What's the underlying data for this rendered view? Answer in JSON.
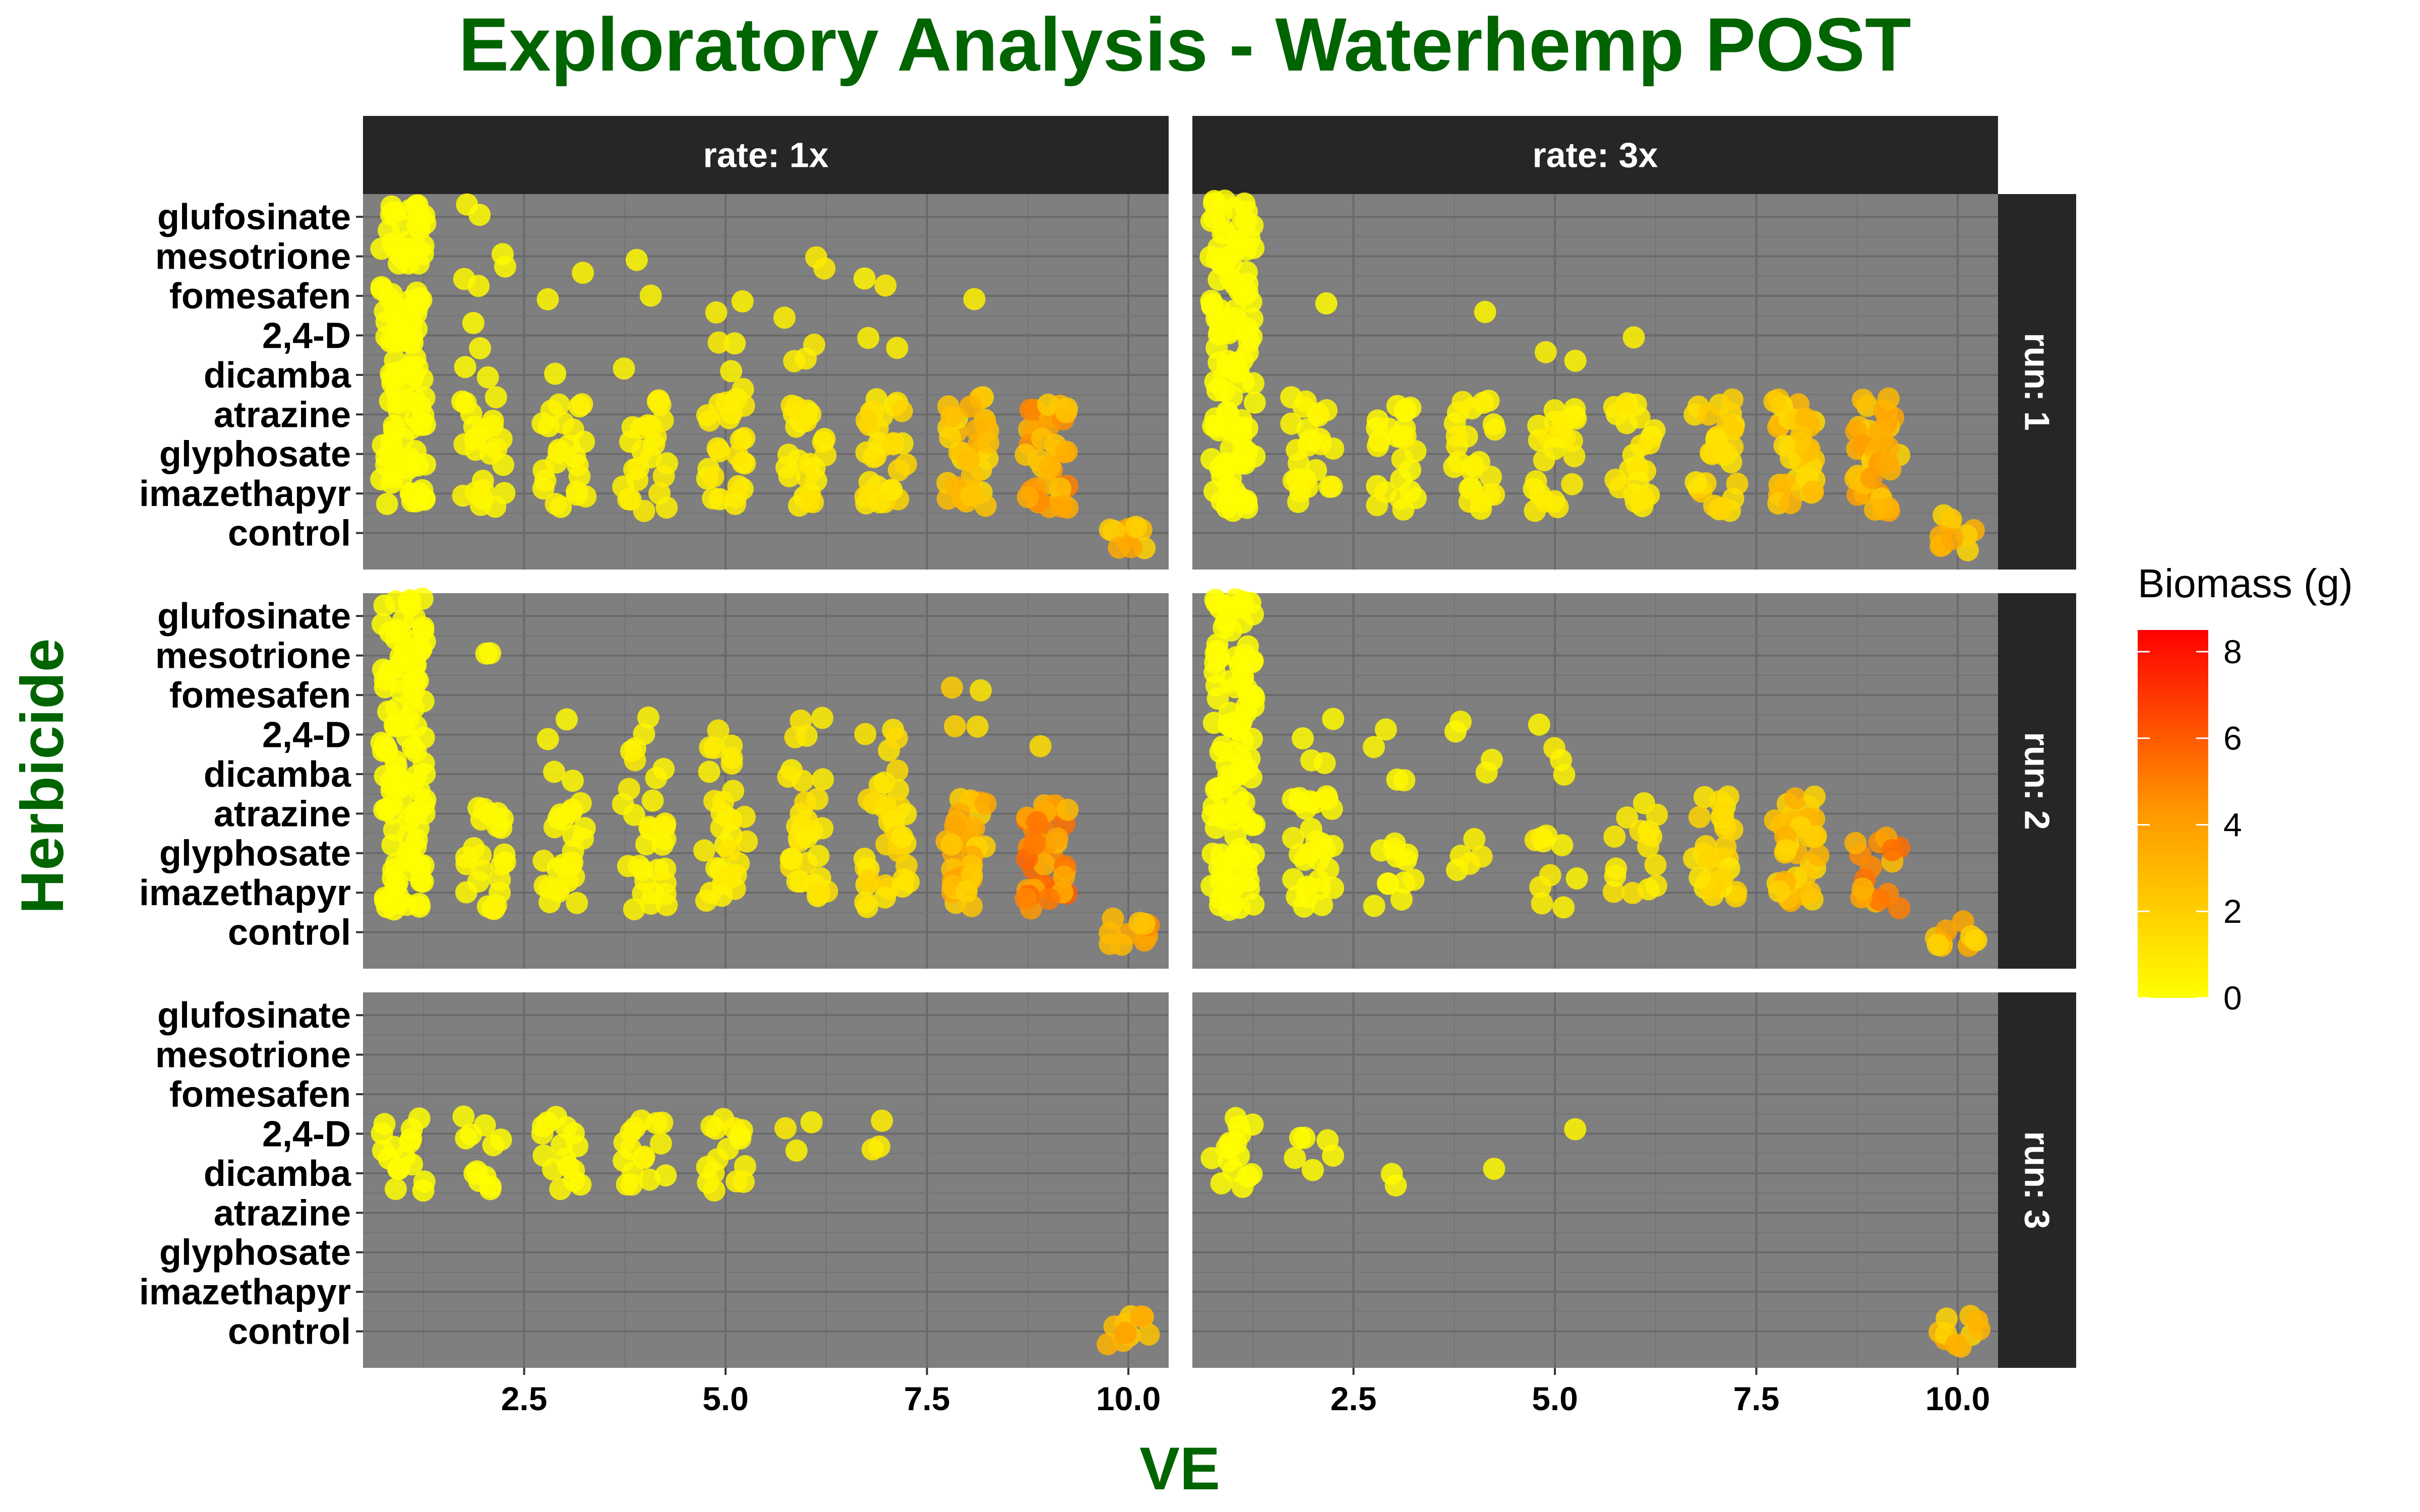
{
  "chart_data": {
    "type": "scatter",
    "title": "Exploratory Analysis - Waterhemp POST",
    "xlabel": "VE",
    "ylabel": "Herbicide",
    "xlim": [
      0.5,
      10.5
    ],
    "x_ticks": [
      "2.5",
      "5.0",
      "7.5",
      "10.0"
    ],
    "x_tick_values": [
      2.5,
      5.0,
      7.5,
      10.0
    ],
    "categories": [
      "glufosinate",
      "mesotrione",
      "fomesafen",
      "2,4-D",
      "dicamba",
      "atrazine",
      "glyphosate",
      "imazethapyr",
      "control"
    ],
    "facet_cols": [
      "rate: 1x",
      "rate: 3x"
    ],
    "facet_rows": [
      "run: 1",
      "run: 2",
      "run: 3"
    ],
    "color_scale": {
      "title": "Biomass (g)",
      "low": "#ffff00",
      "mid": "#ff9900",
      "high": "#ff0000",
      "range": [
        0,
        8.5
      ],
      "ticks": [
        "0",
        "2",
        "4",
        "6",
        "8"
      ],
      "tick_values": [
        0,
        2,
        4,
        6,
        8
      ]
    },
    "panel_background": "#7f7f7f",
    "strip_background": "#262626",
    "title_color": "#006400",
    "grid": true,
    "legend_position": "right",
    "series": [
      {
        "facet": [
          "rate: 1x",
          "run: 1"
        ],
        "clusters": [
          {
            "ve": 1,
            "herbicides": [
              "glufosinate",
              "mesotrione",
              "fomesafen",
              "2,4-D",
              "dicamba",
              "atrazine",
              "glyphosate",
              "imazethapyr"
            ],
            "biomass": 0.05,
            "n": 14
          },
          {
            "ve": 2,
            "herbicides": [
              "glufosinate",
              "mesotrione",
              "fomesafen",
              "2,4-D",
              "dicamba"
            ],
            "biomass": 0.2,
            "n": 2
          },
          {
            "ve": 2,
            "herbicides": [
              "atrazine",
              "glyphosate",
              "imazethapyr"
            ],
            "biomass": 0.3,
            "n": 8
          },
          {
            "ve": 3,
            "herbicides": [
              "mesotrione",
              "fomesafen",
              "dicamba"
            ],
            "biomass": 0.3,
            "n": 1
          },
          {
            "ve": 3,
            "herbicides": [
              "atrazine",
              "glyphosate",
              "imazethapyr"
            ],
            "biomass": 0.4,
            "n": 8
          },
          {
            "ve": 4,
            "herbicides": [
              "mesotrione",
              "fomesafen",
              "dicamba"
            ],
            "biomass": 0.4,
            "n": 1
          },
          {
            "ve": 4,
            "herbicides": [
              "atrazine",
              "glyphosate",
              "imazethapyr"
            ],
            "biomass": 0.5,
            "n": 8
          },
          {
            "ve": 5,
            "herbicides": [
              "fomesafen",
              "2,4-D",
              "dicamba"
            ],
            "biomass": 0.5,
            "n": 2
          },
          {
            "ve": 5,
            "herbicides": [
              "atrazine",
              "glyphosate",
              "imazethapyr"
            ],
            "biomass": 0.7,
            "n": 8
          },
          {
            "ve": 6,
            "herbicides": [
              "mesotrione",
              "2,4-D",
              "dicamba"
            ],
            "biomass": 0.6,
            "n": 2
          },
          {
            "ve": 6,
            "herbicides": [
              "atrazine",
              "glyphosate",
              "imazethapyr"
            ],
            "biomass": 0.9,
            "n": 8
          },
          {
            "ve": 7,
            "herbicides": [
              "fomesafen",
              "2,4-D"
            ],
            "biomass": 0.6,
            "n": 2
          },
          {
            "ve": 7,
            "herbicides": [
              "atrazine",
              "glyphosate",
              "imazethapyr"
            ],
            "biomass": 1.3,
            "n": 10
          },
          {
            "ve": 8,
            "herbicides": [
              "fomesafen"
            ],
            "biomass": 0.8,
            "n": 1
          },
          {
            "ve": 8,
            "herbicides": [
              "atrazine",
              "glyphosate",
              "imazethapyr"
            ],
            "biomass": 2.4,
            "n": 12
          },
          {
            "ve": 9,
            "herbicides": [
              "atrazine",
              "glyphosate",
              "imazethapyr"
            ],
            "biomass": 3.6,
            "n": 12
          },
          {
            "ve": 10,
            "herbicides": [
              "control"
            ],
            "biomass": 2.8,
            "n": 10
          }
        ]
      },
      {
        "facet": [
          "rate: 3x",
          "run: 1"
        ],
        "clusters": [
          {
            "ve": 1,
            "herbicides": [
              "glufosinate",
              "mesotrione",
              "fomesafen",
              "2,4-D",
              "dicamba",
              "atrazine",
              "glyphosate",
              "imazethapyr"
            ],
            "biomass": 0.05,
            "n": 14
          },
          {
            "ve": 2,
            "herbicides": [
              "fomesafen"
            ],
            "biomass": 0.2,
            "n": 1
          },
          {
            "ve": 2,
            "herbicides": [
              "atrazine",
              "glyphosate",
              "imazethapyr"
            ],
            "biomass": 0.3,
            "n": 8
          },
          {
            "ve": 3,
            "herbicides": [
              "atrazine",
              "glyphosate",
              "imazethapyr"
            ],
            "biomass": 0.3,
            "n": 8
          },
          {
            "ve": 4,
            "herbicides": [
              "fomesafen"
            ],
            "biomass": 0.3,
            "n": 1
          },
          {
            "ve": 4,
            "herbicides": [
              "atrazine",
              "glyphosate",
              "imazethapyr"
            ],
            "biomass": 0.5,
            "n": 8
          },
          {
            "ve": 5,
            "herbicides": [
              "2,4-D",
              "dicamba"
            ],
            "biomass": 0.4,
            "n": 1
          },
          {
            "ve": 5,
            "herbicides": [
              "atrazine",
              "glyphosate",
              "imazethapyr"
            ],
            "biomass": 0.6,
            "n": 8
          },
          {
            "ve": 6,
            "herbicides": [
              "2,4-D"
            ],
            "biomass": 0.5,
            "n": 1
          },
          {
            "ve": 6,
            "herbicides": [
              "atrazine",
              "glyphosate",
              "imazethapyr"
            ],
            "biomass": 0.8,
            "n": 8
          },
          {
            "ve": 7,
            "herbicides": [
              "atrazine",
              "glyphosate",
              "imazethapyr"
            ],
            "biomass": 1.6,
            "n": 10
          },
          {
            "ve": 8,
            "herbicides": [
              "atrazine",
              "glyphosate",
              "imazethapyr"
            ],
            "biomass": 2.2,
            "n": 12
          },
          {
            "ve": 9,
            "herbicides": [
              "atrazine",
              "glyphosate",
              "imazethapyr"
            ],
            "biomass": 3.0,
            "n": 12
          },
          {
            "ve": 10,
            "herbicides": [
              "control"
            ],
            "biomass": 2.6,
            "n": 10
          }
        ]
      },
      {
        "facet": [
          "rate: 1x",
          "run: 2"
        ],
        "clusters": [
          {
            "ve": 1,
            "herbicides": [
              "glufosinate",
              "mesotrione",
              "fomesafen",
              "2,4-D",
              "dicamba",
              "atrazine",
              "glyphosate",
              "imazethapyr"
            ],
            "biomass": 0.05,
            "n": 14
          },
          {
            "ve": 2,
            "herbicides": [
              "mesotrione"
            ],
            "biomass": 0.2,
            "n": 2
          },
          {
            "ve": 2,
            "herbicides": [
              "atrazine",
              "glyphosate",
              "imazethapyr"
            ],
            "biomass": 0.3,
            "n": 8
          },
          {
            "ve": 3,
            "herbicides": [
              "2,4-D",
              "dicamba"
            ],
            "biomass": 0.3,
            "n": 2
          },
          {
            "ve": 3,
            "herbicides": [
              "atrazine",
              "glyphosate",
              "imazethapyr"
            ],
            "biomass": 0.3,
            "n": 8
          },
          {
            "ve": 4,
            "herbicides": [
              "2,4-D",
              "dicamba"
            ],
            "biomass": 0.5,
            "n": 4
          },
          {
            "ve": 4,
            "herbicides": [
              "atrazine",
              "glyphosate",
              "imazethapyr"
            ],
            "biomass": 0.4,
            "n": 8
          },
          {
            "ve": 5,
            "herbicides": [
              "2,4-D",
              "dicamba"
            ],
            "biomass": 0.6,
            "n": 4
          },
          {
            "ve": 5,
            "herbicides": [
              "atrazine",
              "glyphosate",
              "imazethapyr"
            ],
            "biomass": 0.7,
            "n": 8
          },
          {
            "ve": 6,
            "herbicides": [
              "2,4-D",
              "dicamba"
            ],
            "biomass": 0.7,
            "n": 4
          },
          {
            "ve": 6,
            "herbicides": [
              "atrazine",
              "glyphosate",
              "imazethapyr"
            ],
            "biomass": 0.9,
            "n": 8
          },
          {
            "ve": 7,
            "herbicides": [
              "2,4-D",
              "dicamba"
            ],
            "biomass": 1.1,
            "n": 4
          },
          {
            "ve": 7,
            "herbicides": [
              "atrazine",
              "glyphosate",
              "imazethapyr"
            ],
            "biomass": 1.4,
            "n": 10
          },
          {
            "ve": 8,
            "herbicides": [
              "2,4-D",
              "fomesafen"
            ],
            "biomass": 1.5,
            "n": 2
          },
          {
            "ve": 8,
            "herbicides": [
              "atrazine",
              "glyphosate",
              "imazethapyr"
            ],
            "biomass": 2.8,
            "n": 12
          },
          {
            "ve": 9,
            "herbicides": [
              "2,4-D"
            ],
            "biomass": 1.6,
            "n": 1
          },
          {
            "ve": 9,
            "herbicides": [
              "atrazine",
              "glyphosate",
              "imazethapyr"
            ],
            "biomass": 4.2,
            "n": 12
          },
          {
            "ve": 10,
            "herbicides": [
              "control"
            ],
            "biomass": 3.4,
            "n": 10
          }
        ]
      },
      {
        "facet": [
          "rate: 3x",
          "run: 2"
        ],
        "clusters": [
          {
            "ve": 1,
            "herbicides": [
              "glufosinate",
              "mesotrione",
              "fomesafen",
              "2,4-D",
              "dicamba",
              "atrazine",
              "glyphosate",
              "imazethapyr"
            ],
            "biomass": 0.05,
            "n": 14
          },
          {
            "ve": 2,
            "herbicides": [
              "2,4-D",
              "dicamba"
            ],
            "biomass": 0.2,
            "n": 2
          },
          {
            "ve": 2,
            "herbicides": [
              "atrazine",
              "glyphosate",
              "imazethapyr"
            ],
            "biomass": 0.2,
            "n": 10
          },
          {
            "ve": 3,
            "herbicides": [
              "2,4-D",
              "dicamba"
            ],
            "biomass": 0.3,
            "n": 2
          },
          {
            "ve": 3,
            "herbicides": [
              "glyphosate",
              "imazethapyr"
            ],
            "biomass": 0.3,
            "n": 6
          },
          {
            "ve": 4,
            "herbicides": [
              "2,4-D",
              "dicamba"
            ],
            "biomass": 0.4,
            "n": 2
          },
          {
            "ve": 4,
            "herbicides": [
              "glyphosate"
            ],
            "biomass": 0.5,
            "n": 5
          },
          {
            "ve": 5,
            "herbicides": [
              "2,4-D",
              "dicamba"
            ],
            "biomass": 0.5,
            "n": 2
          },
          {
            "ve": 5,
            "herbicides": [
              "glyphosate",
              "imazethapyr"
            ],
            "biomass": 0.6,
            "n": 5
          },
          {
            "ve": 6,
            "herbicides": [
              "atrazine",
              "glyphosate",
              "imazethapyr"
            ],
            "biomass": 0.8,
            "n": 5
          },
          {
            "ve": 7,
            "herbicides": [
              "atrazine",
              "glyphosate",
              "imazethapyr"
            ],
            "biomass": 1.4,
            "n": 10
          },
          {
            "ve": 8,
            "herbicides": [
              "atrazine",
              "glyphosate",
              "imazethapyr"
            ],
            "biomass": 2.4,
            "n": 12
          },
          {
            "ve": 9,
            "herbicides": [
              "glyphosate",
              "imazethapyr"
            ],
            "biomass": 4.0,
            "n": 8
          },
          {
            "ve": 10,
            "herbicides": [
              "control"
            ],
            "biomass": 2.8,
            "n": 10
          }
        ]
      },
      {
        "facet": [
          "rate: 1x",
          "run: 3"
        ],
        "clusters": [
          {
            "ve": 1,
            "herbicides": [
              "2,4-D",
              "dicamba"
            ],
            "biomass": 0.05,
            "n": 8
          },
          {
            "ve": 2,
            "herbicides": [
              "2,4-D",
              "dicamba"
            ],
            "biomass": 0.1,
            "n": 6
          },
          {
            "ve": 3,
            "herbicides": [
              "2,4-D",
              "dicamba"
            ],
            "biomass": 0.2,
            "n": 8
          },
          {
            "ve": 4,
            "herbicides": [
              "2,4-D",
              "dicamba"
            ],
            "biomass": 0.3,
            "n": 8
          },
          {
            "ve": 5,
            "herbicides": [
              "2,4-D",
              "dicamba"
            ],
            "biomass": 0.4,
            "n": 8
          },
          {
            "ve": 6,
            "herbicides": [
              "2,4-D"
            ],
            "biomass": 0.5,
            "n": 3
          },
          {
            "ve": 7,
            "herbicides": [
              "2,4-D"
            ],
            "biomass": 0.6,
            "n": 3
          },
          {
            "ve": 10,
            "herbicides": [
              "control"
            ],
            "biomass": 3.0,
            "n": 10
          }
        ]
      },
      {
        "facet": [
          "rate: 3x",
          "run: 3"
        ],
        "clusters": [
          {
            "ve": 1,
            "herbicides": [
              "2,4-D",
              "dicamba"
            ],
            "biomass": 0.05,
            "n": 8
          },
          {
            "ve": 2,
            "herbicides": [
              "2,4-D",
              "dicamba"
            ],
            "biomass": 0.1,
            "n": 3
          },
          {
            "ve": 3,
            "herbicides": [
              "dicamba"
            ],
            "biomass": 0.2,
            "n": 2
          },
          {
            "ve": 4,
            "herbicides": [
              "dicamba"
            ],
            "biomass": 0.2,
            "n": 1
          },
          {
            "ve": 5,
            "herbicides": [
              "2,4-D"
            ],
            "biomass": 0.3,
            "n": 1
          },
          {
            "ve": 10,
            "herbicides": [
              "control"
            ],
            "biomass": 2.8,
            "n": 10
          }
        ]
      }
    ]
  }
}
